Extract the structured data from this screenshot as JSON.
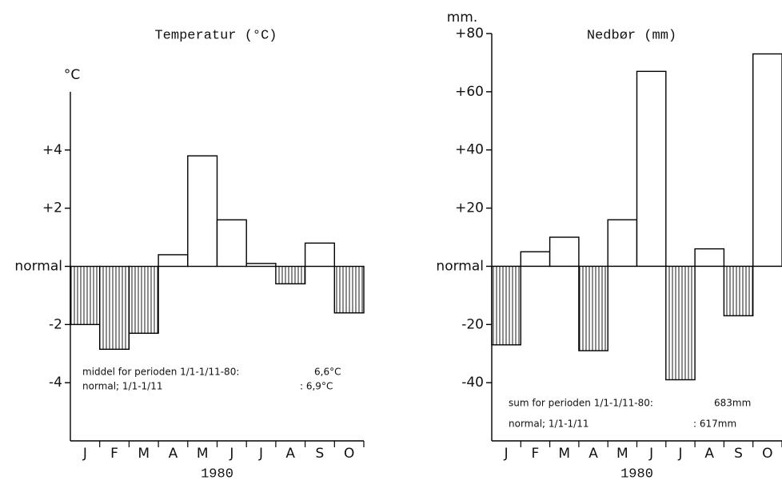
{
  "chart_data": [
    {
      "type": "bar",
      "title": "Temperatur (°C)",
      "y_label": "°C",
      "x_label": "1980",
      "categories": [
        "J",
        "F",
        "M",
        "A",
        "M",
        "J",
        "J",
        "A",
        "S",
        "O"
      ],
      "values": [
        -2.0,
        -2.85,
        -2.3,
        0.4,
        3.8,
        1.6,
        0.1,
        -0.6,
        0.8,
        -1.6
      ],
      "color": "#000000",
      "ylim": [
        -6,
        6
      ],
      "yticks": [
        {
          "value": 4,
          "label": "+4"
        },
        {
          "value": 2,
          "label": "+2"
        },
        {
          "value": 0,
          "label": "normal"
        },
        -2,
        -4
      ],
      "annotations": [
        {
          "text": "middel for perioden 1/1-1/11-80:",
          "value": "6,6°C"
        },
        {
          "text": "normal; 1/1-1/11",
          "value": ": 6,9°C"
        }
      ]
    },
    {
      "type": "bar",
      "title": "Nedbør (mm)",
      "y_label": "mm.",
      "x_label": "1980",
      "categories": [
        "J",
        "F",
        "M",
        "A",
        "M",
        "J",
        "J",
        "A",
        "S",
        "O"
      ],
      "values": [
        -27,
        5,
        10,
        -29,
        16,
        67,
        -39,
        6,
        -17,
        73
      ],
      "color": "#000000",
      "ylim": [
        -60,
        80
      ],
      "yticks": [
        {
          "value": 80,
          "label": "+80"
        },
        {
          "value": 60,
          "label": "+60"
        },
        {
          "value": 40,
          "label": "+40"
        },
        {
          "value": 20,
          "label": "+20"
        },
        {
          "value": 0,
          "label": "normal"
        },
        -20,
        -40
      ],
      "annotations": [
        {
          "text": "sum for perioden 1/1-1/11-80:",
          "value": "683mm"
        },
        {
          "text": "normal; 1/1-1/11",
          "value": ": 617mm"
        }
      ]
    }
  ]
}
